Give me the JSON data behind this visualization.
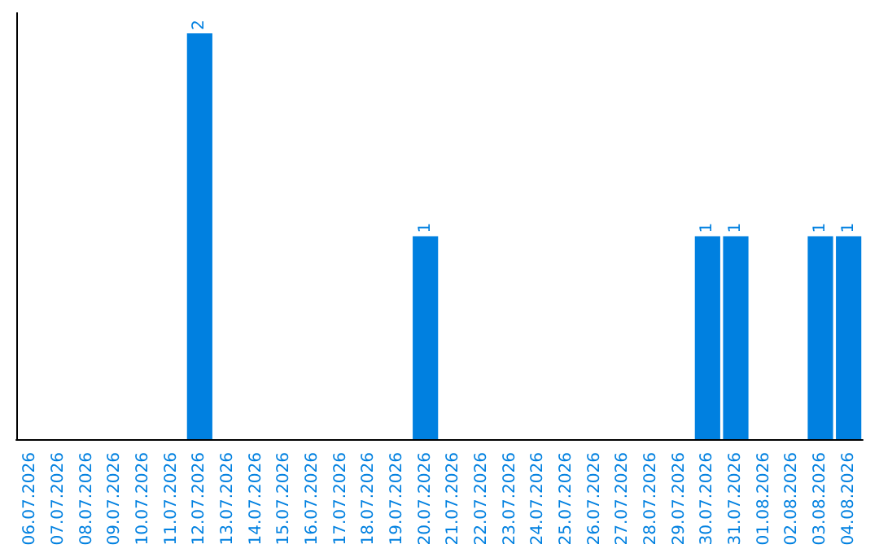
{
  "chart_data": {
    "type": "bar",
    "categories": [
      "06.07.2026",
      "07.07.2026",
      "08.07.2026",
      "09.07.2026",
      "10.07.2026",
      "11.07.2026",
      "12.07.2026",
      "13.07.2026",
      "14.07.2026",
      "15.07.2026",
      "16.07.2026",
      "17.07.2026",
      "18.07.2026",
      "19.07.2026",
      "20.07.2026",
      "21.07.2026",
      "22.07.2026",
      "23.07.2026",
      "24.07.2026",
      "25.07.2026",
      "26.07.2026",
      "27.07.2026",
      "28.07.2026",
      "29.07.2026",
      "30.07.2026",
      "31.07.2026",
      "01.08.2026",
      "02.08.2026",
      "03.08.2026",
      "04.08.2026"
    ],
    "values": [
      0,
      0,
      0,
      0,
      0,
      0,
      2,
      0,
      0,
      0,
      0,
      0,
      0,
      0,
      1,
      0,
      0,
      0,
      0,
      0,
      0,
      0,
      0,
      0,
      1,
      1,
      0,
      0,
      1,
      1
    ],
    "value_labels": [
      null,
      null,
      null,
      null,
      null,
      null,
      "2",
      null,
      null,
      null,
      null,
      null,
      null,
      null,
      "1",
      null,
      null,
      null,
      null,
      null,
      null,
      null,
      null,
      null,
      "1",
      "1",
      null,
      null,
      "1",
      "1"
    ],
    "color": "#0080e0",
    "ylim": [
      0,
      2.1
    ],
    "grid": false
  }
}
